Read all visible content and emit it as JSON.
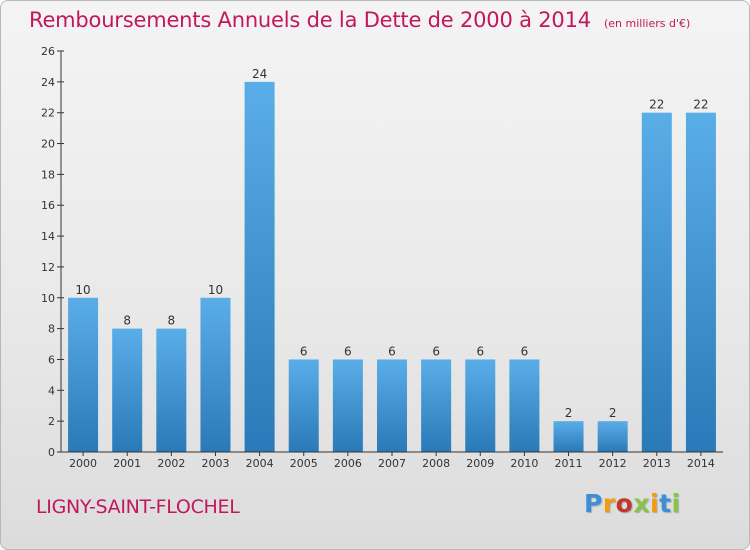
{
  "header": {
    "title": "Remboursements Annuels de la Dette de 2000 à 2014",
    "subtitle": "(en milliers d'€)"
  },
  "footer": {
    "commune": "LIGNY-SAINT-FLOCHEL",
    "logo": {
      "text": "Proxiti",
      "letter_colors": [
        "#3b8fd6",
        "#f39c12",
        "#c0392b",
        "#8bc34a",
        "#f39c12",
        "#3b8fd6",
        "#8bc34a"
      ]
    }
  },
  "colors": {
    "title": "#c2185b",
    "bar_top": "#5aaee8",
    "bar_bottom": "#2a79b8",
    "axis": "#333333",
    "grid": "#cfcfcf"
  },
  "chart_data": {
    "type": "bar",
    "title": "Remboursements Annuels de la Dette de 2000 à 2014",
    "subtitle": "(en milliers d'€)",
    "xlabel": "",
    "ylabel": "",
    "categories": [
      "2000",
      "2001",
      "2002",
      "2003",
      "2004",
      "2005",
      "2006",
      "2007",
      "2008",
      "2009",
      "2010",
      "2011",
      "2012",
      "2013",
      "2014"
    ],
    "values": [
      10,
      8,
      8,
      10,
      24,
      6,
      6,
      6,
      6,
      6,
      6,
      2,
      2,
      22,
      22
    ],
    "data_labels": [
      "10",
      "8",
      "8",
      "10",
      "24",
      "6",
      "6",
      "6",
      "6",
      "6",
      "6",
      "2",
      "2",
      "22",
      "22"
    ],
    "ylim": [
      0,
      26
    ],
    "yticks": [
      0,
      2,
      4,
      6,
      8,
      10,
      12,
      14,
      16,
      18,
      20,
      22,
      24,
      26
    ],
    "grid": false,
    "legend": "none"
  }
}
